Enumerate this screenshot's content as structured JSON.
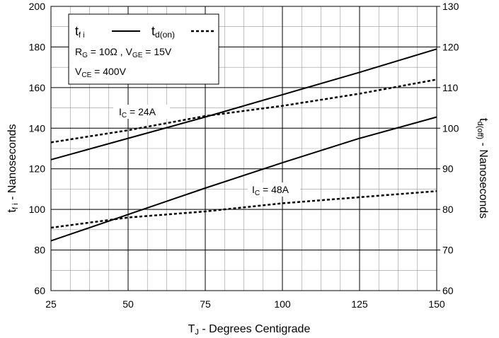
{
  "chart_data": {
    "type": "line",
    "x_axis": {
      "label_main": "T",
      "label_sub": "J",
      "label_rest": " - Degrees Centigrade",
      "range": [
        25,
        150
      ],
      "ticks": [
        25,
        50,
        75,
        100,
        125,
        150
      ],
      "minor_step": 6.25
    },
    "y_left": {
      "label_main": "t",
      "label_sub": "f i",
      "label_rest": " - Nanoseconds",
      "range": [
        60,
        200
      ],
      "ticks": [
        60,
        80,
        100,
        120,
        140,
        160,
        180,
        200
      ],
      "minor_step": 10
    },
    "y_right": {
      "label_main": "t",
      "label_sub": "d(off)",
      "label_rest": " - Nanoseconds",
      "range": [
        60,
        130
      ],
      "ticks": [
        60,
        70,
        80,
        90,
        100,
        110,
        120,
        130
      ]
    },
    "legend": {
      "placement": "top-left",
      "solid_main": "t",
      "solid_sub": "f i",
      "dashed_main": "t",
      "dashed_sub": "d(on)",
      "rg_main": "R",
      "rg_sub": "G",
      "rg_value": " = 10Ω ,  ",
      "vge_main": "V",
      "vge_sub": "GE",
      "vge_value": " = 15V",
      "vce_main": "V",
      "vce_sub": "CE",
      "vce_value": " = 400V"
    },
    "annotations": [
      {
        "main": "I",
        "sub": "C",
        "value": " = 24A"
      },
      {
        "main": "I",
        "sub": "C",
        "value": " = 48A"
      }
    ],
    "grid": true,
    "series": [
      {
        "style": "solid",
        "axis": "left",
        "x": [
          25,
          50,
          75,
          100,
          125,
          150
        ],
        "y": [
          124.5,
          135,
          145.5,
          156.5,
          167.5,
          179
        ]
      },
      {
        "style": "dashed",
        "axis": "right",
        "x": [
          25,
          50,
          75,
          100,
          125,
          150
        ],
        "y": [
          96.5,
          99.5,
          103,
          105.5,
          108.5,
          112
        ]
      },
      {
        "style": "solid",
        "axis": "left",
        "x": [
          25,
          50,
          75,
          100,
          125,
          150
        ],
        "y": [
          84.5,
          97.5,
          110.5,
          123,
          135,
          145.5
        ]
      },
      {
        "style": "dashed",
        "axis": "right",
        "x": [
          25,
          50,
          75,
          100,
          125,
          150
        ],
        "y": [
          75.5,
          78,
          79.5,
          81.5,
          83,
          84.5
        ]
      }
    ]
  }
}
